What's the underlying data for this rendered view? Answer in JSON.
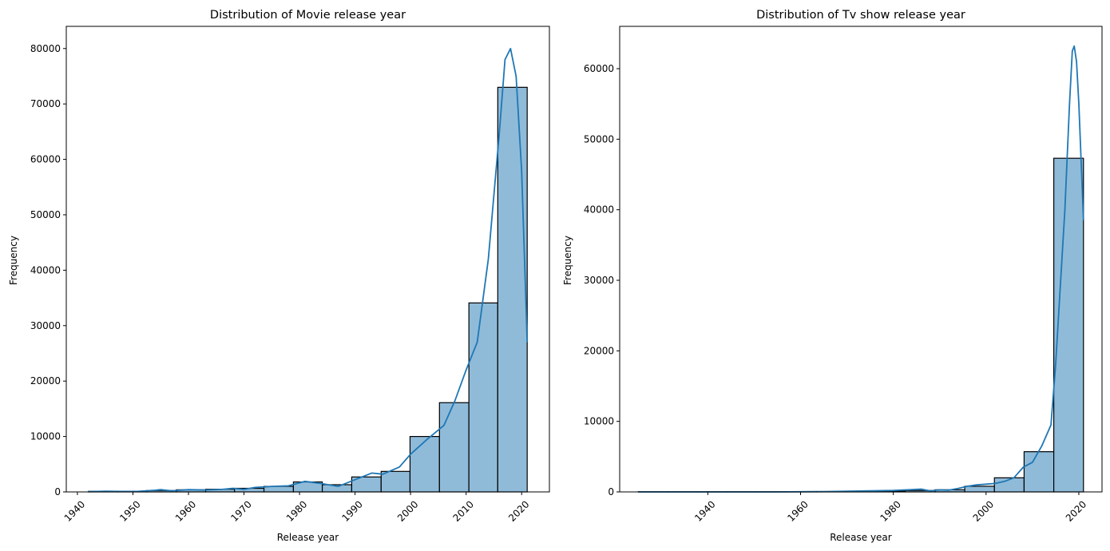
{
  "chart_data": [
    {
      "type": "bar",
      "title": "Distribution of Movie release year",
      "xlabel": "Release year",
      "ylabel": "Frequency",
      "xlim": [
        1938,
        2025
      ],
      "ylim": [
        0,
        84000
      ],
      "xticks": [
        1940,
        1950,
        1960,
        1970,
        1980,
        1990,
        2000,
        2010,
        2020
      ],
      "yticks": [
        0,
        10000,
        20000,
        30000,
        40000,
        50000,
        60000,
        70000,
        80000
      ],
      "xtick_rotation": 45,
      "grid": false,
      "bar_color": "#8fbbd9",
      "edge_color": "#000000",
      "kde_color": "#1f77b4",
      "bins": [
        {
          "start": 1942.0,
          "end": 1947.3,
          "value": 100
        },
        {
          "start": 1947.3,
          "end": 1952.5,
          "value": 60
        },
        {
          "start": 1952.5,
          "end": 1957.8,
          "value": 250
        },
        {
          "start": 1957.8,
          "end": 1963.1,
          "value": 380
        },
        {
          "start": 1963.1,
          "end": 1968.3,
          "value": 480
        },
        {
          "start": 1968.3,
          "end": 1973.6,
          "value": 650
        },
        {
          "start": 1973.6,
          "end": 1978.9,
          "value": 1000
        },
        {
          "start": 1978.9,
          "end": 1984.1,
          "value": 1800
        },
        {
          "start": 1984.1,
          "end": 1989.4,
          "value": 1300
        },
        {
          "start": 1989.4,
          "end": 1994.7,
          "value": 2700
        },
        {
          "start": 1994.7,
          "end": 1999.9,
          "value": 3700
        },
        {
          "start": 1999.9,
          "end": 2005.2,
          "value": 10000
        },
        {
          "start": 2005.2,
          "end": 2010.5,
          "value": 16100
        },
        {
          "start": 2010.5,
          "end": 2015.7,
          "value": 34100
        },
        {
          "start": 2015.7,
          "end": 2021.0,
          "value": 73000
        }
      ],
      "kde": {
        "x": [
          1942,
          1945,
          1948,
          1951,
          1954,
          1955,
          1957,
          1960,
          1963,
          1966,
          1968,
          1970,
          1972,
          1975,
          1978,
          1981,
          1984,
          1987,
          1990,
          1993,
          1995,
          1998,
          2000,
          2003,
          2006,
          2008,
          2010,
          2012,
          2014,
          2016,
          2017,
          2018,
          2019,
          2020,
          2021
        ],
        "y": [
          50,
          120,
          80,
          100,
          300,
          400,
          200,
          400,
          350,
          450,
          650,
          450,
          800,
          1000,
          1100,
          1900,
          1500,
          1000,
          2200,
          3400,
          3200,
          4500,
          6800,
          9500,
          12000,
          16500,
          22000,
          27000,
          42000,
          65000,
          78000,
          80000,
          75000,
          58000,
          27000
        ]
      }
    },
    {
      "type": "bar",
      "title": "Distribution of Tv show release year",
      "xlabel": "Release year",
      "ylabel": "Frequency",
      "xlim": [
        1921,
        2025
      ],
      "ylim": [
        0,
        66000
      ],
      "xticks": [
        1940,
        1960,
        1980,
        2000,
        2020
      ],
      "yticks": [
        0,
        10000,
        20000,
        30000,
        40000,
        50000,
        60000
      ],
      "xtick_rotation": 45,
      "grid": false,
      "bar_color": "#8fbbd9",
      "edge_color": "#000000",
      "kde_color": "#1f77b4",
      "bins": [
        {
          "start": 1925.0,
          "end": 1931.4,
          "value": 30
        },
        {
          "start": 1931.4,
          "end": 1937.8,
          "value": 30
        },
        {
          "start": 1937.8,
          "end": 1944.2,
          "value": 30
        },
        {
          "start": 1944.2,
          "end": 1950.6,
          "value": 30
        },
        {
          "start": 1950.6,
          "end": 1957.0,
          "value": 30
        },
        {
          "start": 1957.0,
          "end": 1963.4,
          "value": 40
        },
        {
          "start": 1963.4,
          "end": 1969.8,
          "value": 50
        },
        {
          "start": 1969.8,
          "end": 1976.2,
          "value": 80
        },
        {
          "start": 1976.2,
          "end": 1982.6,
          "value": 120
        },
        {
          "start": 1982.6,
          "end": 1989.0,
          "value": 200
        },
        {
          "start": 1989.0,
          "end": 1995.4,
          "value": 300
        },
        {
          "start": 1995.4,
          "end": 2001.8,
          "value": 800
        },
        {
          "start": 2001.8,
          "end": 2008.2,
          "value": 2000
        },
        {
          "start": 2008.2,
          "end": 2014.6,
          "value": 5700
        },
        {
          "start": 2014.6,
          "end": 2021.0,
          "value": 47300
        }
      ],
      "kde": {
        "x": [
          1925,
          1935,
          1945,
          1955,
          1965,
          1970,
          1975,
          1980,
          1983,
          1986,
          1988,
          1990,
          1992,
          1994,
          1996,
          1998,
          2000,
          2002,
          2004,
          2006,
          2008,
          2010,
          2012,
          2014,
          2015,
          2016,
          2017,
          2018,
          2018.6,
          2019,
          2019.5,
          2020,
          2021
        ],
        "y": [
          0,
          0,
          0,
          0,
          50,
          100,
          150,
          200,
          300,
          400,
          150,
          300,
          250,
          500,
          800,
          1000,
          1100,
          1200,
          1500,
          2000,
          3500,
          4200,
          6500,
          9500,
          18000,
          29000,
          40000,
          55000,
          62500,
          63200,
          61000,
          55000,
          38500
        ]
      }
    }
  ]
}
